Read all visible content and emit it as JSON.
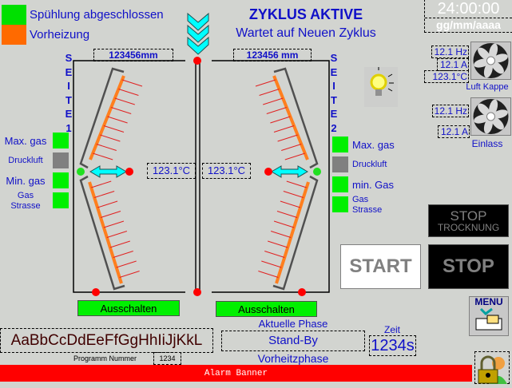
{
  "legend": [
    {
      "label": "Spühlung abgeschlossen",
      "color": "#00e000"
    },
    {
      "label": "Vorheizung",
      "color": "#ff6a00"
    }
  ],
  "header": {
    "title": "ZYKLUS AKTIVE",
    "subtitle": "Wartet auf Neuen Zyklus",
    "time": "24:00:00",
    "date": "gg/mm/aaaa"
  },
  "side1": {
    "letters": [
      "S",
      "E",
      "I",
      "T",
      "E",
      "1"
    ],
    "length": "123456mm",
    "temp": "123.1°C",
    "button": "Ausschalten",
    "indicators": [
      {
        "label": "Max. gas",
        "color": "#00f000"
      },
      {
        "label": "Druckluft",
        "color": "#808080"
      },
      {
        "label": "Min. gas",
        "color": "#00f000"
      },
      {
        "label": "Gas Strasse",
        "color": "#00f000"
      }
    ]
  },
  "side2": {
    "letters": [
      "S",
      "E",
      "I",
      "T",
      "E",
      "2"
    ],
    "length": "123456 mm",
    "temp": "123.1°C",
    "button": "Ausschalten",
    "indicators": [
      {
        "label": "Max. gas",
        "color": "#00f000"
      },
      {
        "label": "Druckluft",
        "color": "#808080"
      },
      {
        "label": "min. Gas",
        "color": "#00f000"
      },
      {
        "label": "Gas Strasse",
        "color": "#00f000"
      }
    ]
  },
  "fans": [
    {
      "name": "Luft Kappe",
      "hz": "12.1 Hz",
      "amp": "12.1 A",
      "temp": "123.1°C",
      "icon": "fan-icon"
    },
    {
      "name": "Einlass",
      "hz": "12.1 Hz",
      "amp": "12.1 A",
      "icon": "fan-icon"
    }
  ],
  "buttons": {
    "stop_drying_1": "STOP",
    "stop_drying_2": "TROCKNUNG",
    "start": "START",
    "stop": "STOP"
  },
  "bottom": {
    "program_name": "AaBbCcDdEeFfGgHhIiJjKkL",
    "program_label": "Programm Nummer",
    "program_number": "1234",
    "phase_label": "Aktuelle Phase",
    "phase": "Stand-By",
    "next_phase": "Vorheitzphase",
    "time_label": "Zeit",
    "time": "1234s",
    "alarm": "Alarm Banner"
  },
  "colors": {
    "accent": "#1010c8",
    "alarm": "#ff0000",
    "flow": "#00ffff",
    "heater": "#ff7f1e"
  }
}
